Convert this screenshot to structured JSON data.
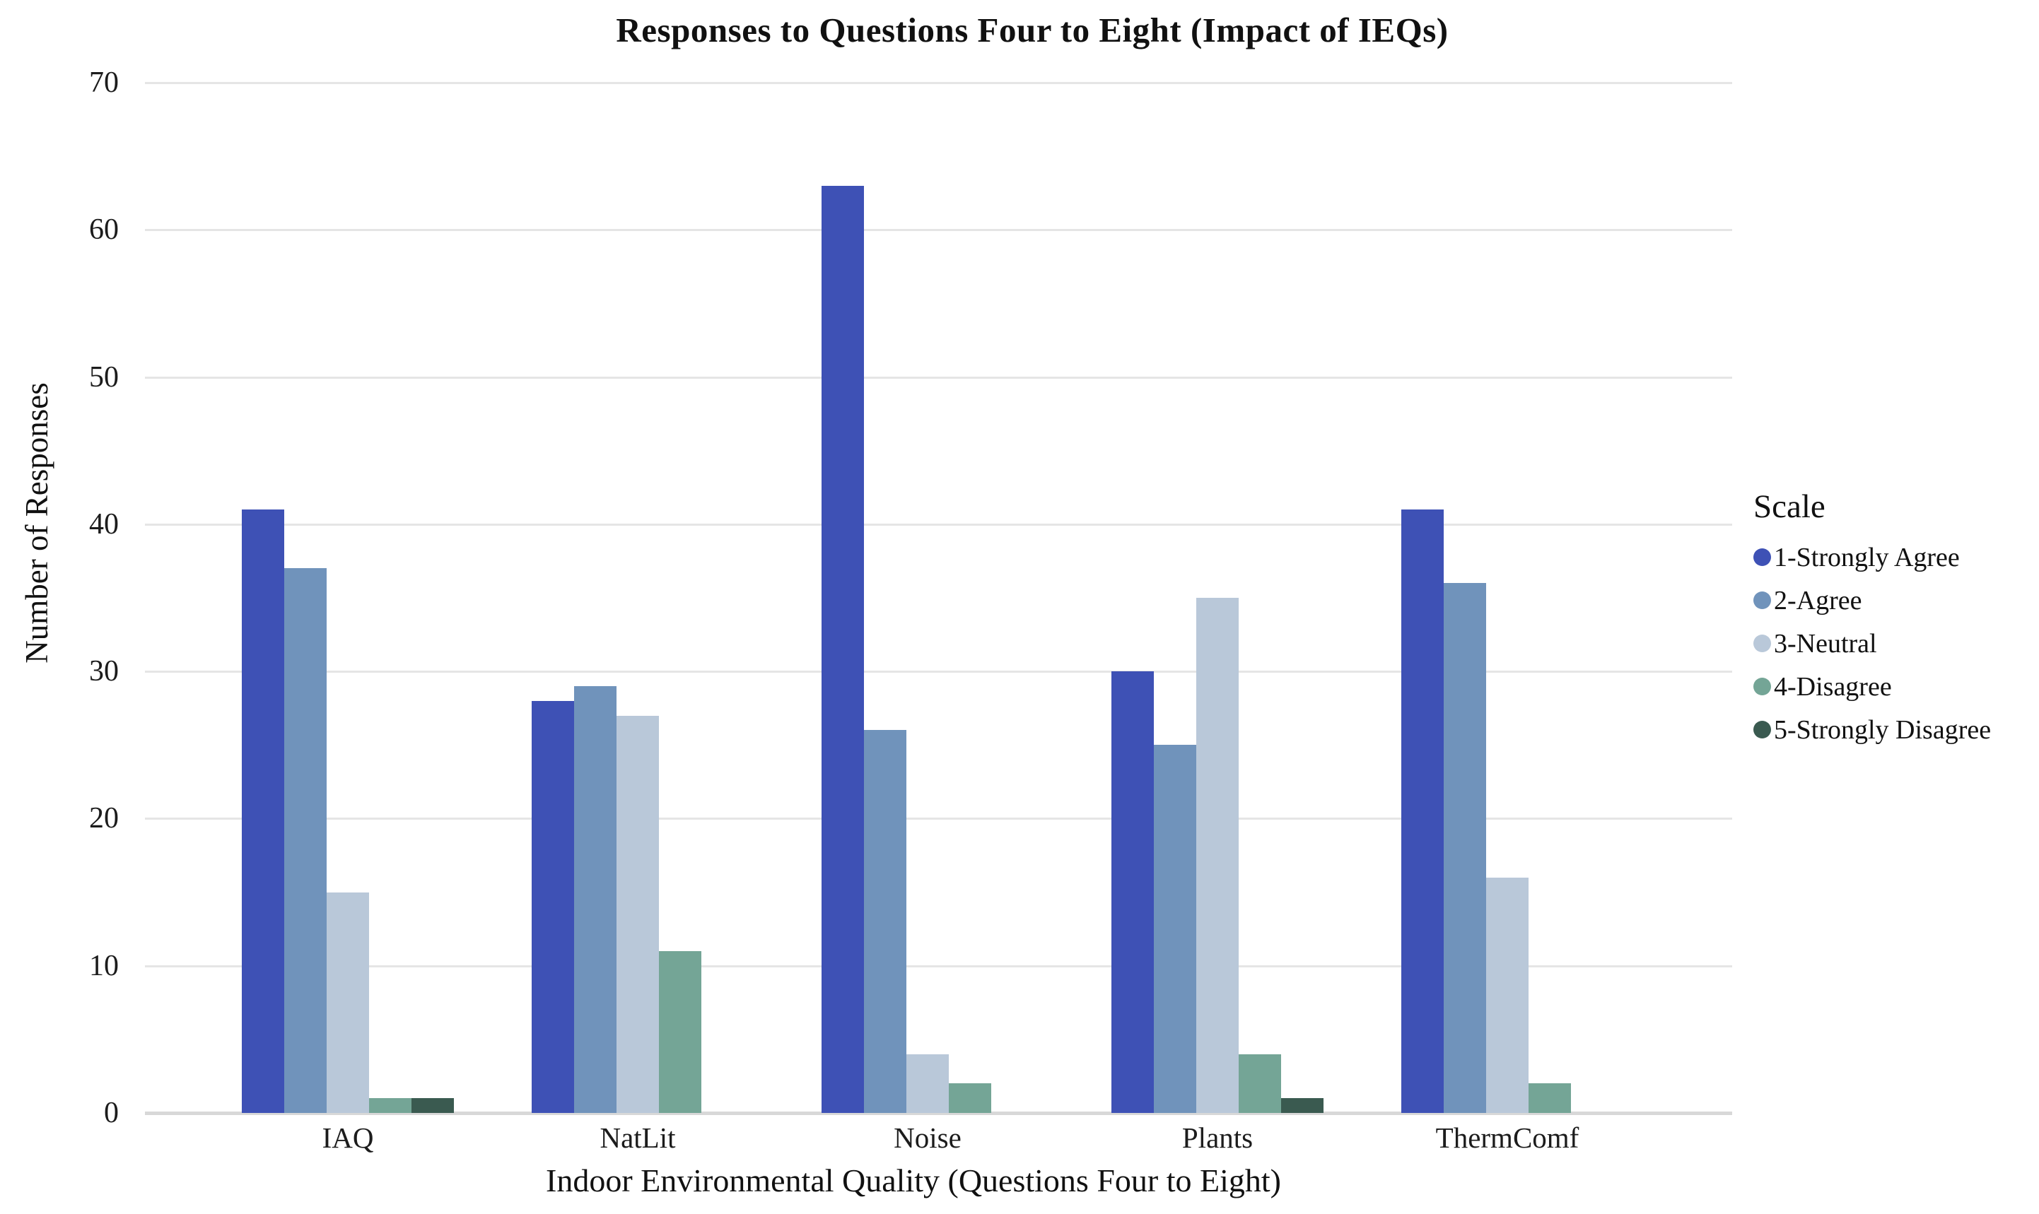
{
  "title": "Responses to Questions Four to Eight (Impact of IEQs)",
  "chart_data": {
    "type": "bar",
    "title": "Responses to Questions Four to Eight (Impact of IEQs)",
    "xlabel": "Indoor Environmental Quality (Questions Four to Eight)",
    "ylabel": "Number of Responses",
    "ylim": [
      0,
      70
    ],
    "yticks": [
      0,
      10,
      20,
      30,
      40,
      50,
      60,
      70
    ],
    "grid": true,
    "background": "#ffffff",
    "gridline_color": "#e5e5e5",
    "axis_line_color": "#d8d8d8",
    "legend_position": "right",
    "legend_title": "Scale",
    "categories": [
      "IAQ",
      "NatLit",
      "Noise",
      "Plants",
      "ThermComf"
    ],
    "series": [
      {
        "name": "1-Strongly Agree",
        "color": "#3E51B5",
        "values": [
          41,
          28,
          63,
          30,
          41
        ]
      },
      {
        "name": "2-Agree",
        "color": "#7093BB",
        "values": [
          37,
          29,
          26,
          25,
          36
        ]
      },
      {
        "name": "3-Neutral",
        "color": "#B9C8D9",
        "values": [
          15,
          27,
          4,
          35,
          16
        ]
      },
      {
        "name": "4-Disagree",
        "color": "#74A596",
        "values": [
          1,
          11,
          2,
          4,
          2
        ]
      },
      {
        "name": "5-Strongly Disagree",
        "color": "#3A5A50",
        "values": [
          1,
          0,
          0,
          1,
          0
        ]
      }
    ]
  }
}
